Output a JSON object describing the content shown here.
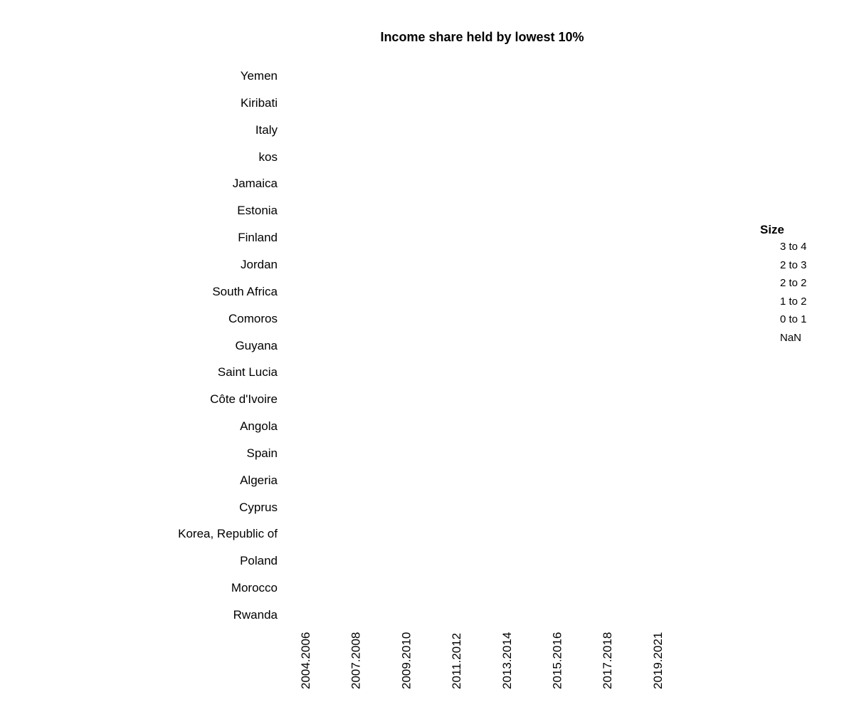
{
  "chart_data": {
    "type": "heatmap",
    "title": "Income share held by lowest 10%",
    "xlabel": "",
    "ylabel": "",
    "categories_x": [
      "2004.2006",
      "2007.2008",
      "2009.2010",
      "2011.2012",
      "2013.2014",
      "2015.2016",
      "2017.2018",
      "2019.2021"
    ],
    "categories_y": [
      "Yemen",
      "Kiribati",
      "Italy",
      "kos",
      "Jamaica",
      "Estonia",
      "Finland",
      "Jordan",
      "South Africa",
      "Comoros",
      "Guyana",
      "Saint Lucia",
      "Côte d'Ivoire",
      "Angola",
      "Spain",
      "Algeria",
      "Cyprus",
      "Korea, Republic of",
      "Poland",
      "Morocco",
      "Rwanda"
    ],
    "cells": [],
    "grid": false,
    "legend": {
      "title": "Size",
      "position": "right",
      "entries": [
        "3 to 4",
        "2 to 3",
        "2 to 2",
        "1 to 2",
        "0 to 1",
        "NaN"
      ]
    }
  }
}
